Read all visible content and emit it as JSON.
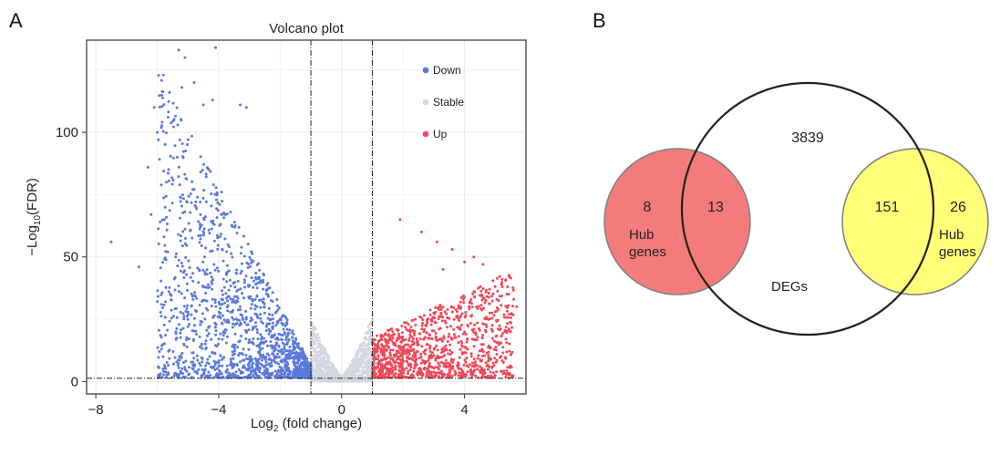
{
  "panels": {
    "a": "A",
    "b": "B"
  },
  "chart_data": [
    {
      "type": "scatter",
      "title": "Volcano plot",
      "xlabel": {
        "main": "Log",
        "sub": "2",
        "rest": " (fold change)"
      },
      "ylabel": {
        "pre": "−Log",
        "sub": "10",
        "rest": "(FDR)"
      },
      "xlim": [
        -8.3,
        6.0
      ],
      "ylim": [
        -5,
        137
      ],
      "xticks": [
        -8,
        -4,
        0,
        4
      ],
      "yticks": [
        0,
        50,
        100
      ],
      "thresholds": {
        "x": [
          -1,
          1
        ],
        "y": 1.3
      },
      "grid": true,
      "legend_position": "top-right",
      "series": [
        {
          "name": "Down",
          "color": "#5a79db"
        },
        {
          "name": "Stable",
          "color": "#d3d7df"
        },
        {
          "name": "Up",
          "color": "#ee4a5a"
        }
      ],
      "outlier_points": {
        "Down": [
          [
            -5.3,
            133
          ],
          [
            -5.1,
            130
          ],
          [
            -4.1,
            134
          ],
          [
            -5.8,
            123
          ],
          [
            -5.6,
            116
          ],
          [
            -6.1,
            110
          ],
          [
            -5.2,
            118
          ],
          [
            -4.5,
            111
          ],
          [
            -4.8,
            120
          ],
          [
            -4.2,
            113
          ],
          [
            -3.3,
            111
          ],
          [
            -3.1,
            110
          ],
          [
            -6.0,
            100
          ],
          [
            -6.3,
            86
          ],
          [
            -7.5,
            56
          ],
          [
            -6.6,
            46
          ],
          [
            -5.7,
            80
          ],
          [
            -5.4,
            50
          ],
          [
            -5.0,
            22
          ],
          [
            -6.2,
            67
          ]
        ],
        "Up": [
          [
            1.9,
            65
          ],
          [
            2.6,
            60
          ],
          [
            3.1,
            56
          ],
          [
            3.6,
            53
          ],
          [
            4.3,
            50
          ],
          [
            4.6,
            47
          ],
          [
            5.2,
            39
          ],
          [
            5.4,
            38
          ],
          [
            5.6,
            33
          ],
          [
            5.7,
            30
          ],
          [
            3.3,
            45
          ],
          [
            4.0,
            48
          ],
          [
            5.0,
            28
          ],
          [
            5.5,
            20
          ]
        ]
      }
    },
    {
      "type": "venn",
      "sets": [
        {
          "label_lines": [
            "Hub",
            "genes"
          ],
          "only": "8",
          "fill": "#f47b7b"
        },
        {
          "label": "DEGs",
          "only": "3839"
        },
        {
          "label_lines": [
            "Hub",
            "genes"
          ],
          "only": "26",
          "fill": "#ffff7a"
        }
      ],
      "intersections": [
        {
          "sets": [
            0,
            1
          ],
          "value": "13"
        },
        {
          "sets": [
            1,
            2
          ],
          "value": "151"
        }
      ]
    }
  ]
}
